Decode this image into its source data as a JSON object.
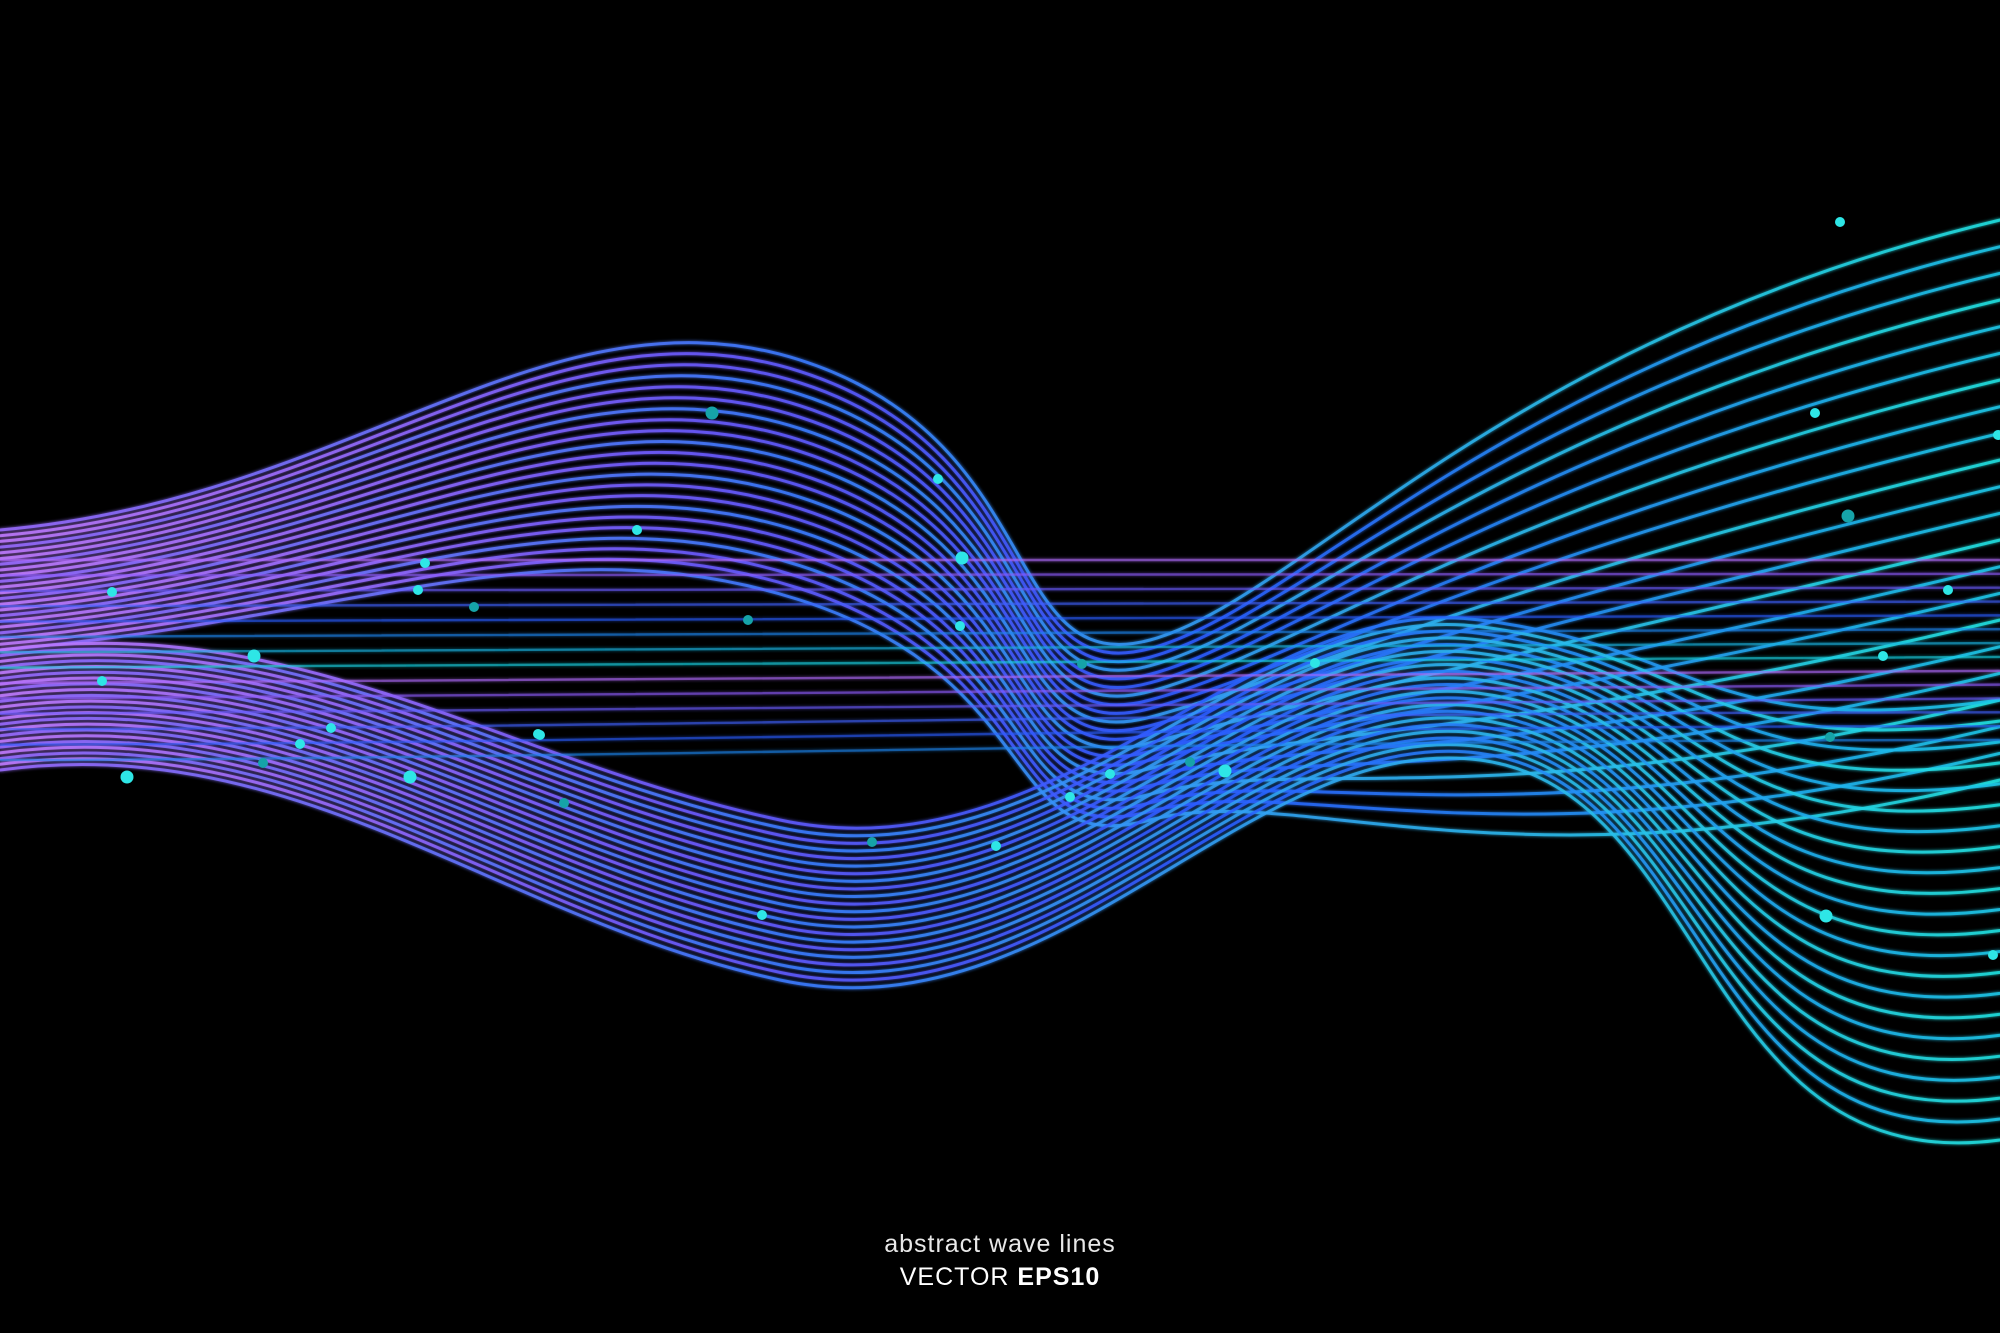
{
  "caption": {
    "line1": "abstract wave lines",
    "line2_regular": "VECTOR ",
    "line2_bold": "EPS10"
  },
  "palette": {
    "background": "#000000",
    "purple": "#b26bff",
    "violet": "#7a4dff",
    "blue": "#2a5cff",
    "cyan": "#19d6e6",
    "teal": "#16a3a8"
  }
}
